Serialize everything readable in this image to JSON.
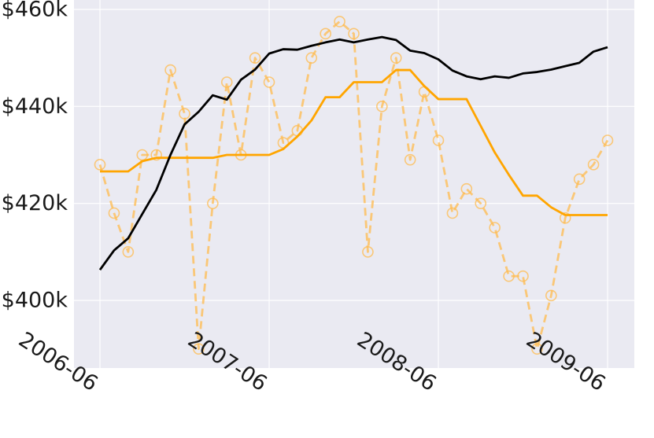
{
  "chart_data": {
    "type": "line",
    "title": "",
    "xlabel": "",
    "ylabel": "",
    "grid": true,
    "x": [
      "2006-06",
      "2006-07",
      "2006-08",
      "2006-09",
      "2006-10",
      "2006-11",
      "2006-12",
      "2007-01",
      "2007-02",
      "2007-03",
      "2007-04",
      "2007-05",
      "2007-06",
      "2007-07",
      "2007-08",
      "2007-09",
      "2007-10",
      "2007-11",
      "2007-12",
      "2008-01",
      "2008-02",
      "2008-03",
      "2008-04",
      "2008-05",
      "2008-06",
      "2008-07",
      "2008-08",
      "2008-09",
      "2008-10",
      "2008-11",
      "2008-12",
      "2009-01",
      "2009-02",
      "2009-03",
      "2009-04",
      "2009-05",
      "2009-06"
    ],
    "x_ticks": [
      "2006-06",
      "2007-06",
      "2008-06",
      "2009-06"
    ],
    "y_ticks": [
      400000,
      420000,
      440000,
      460000
    ],
    "y_tick_labels": [
      "$400k",
      "$420k",
      "$440k",
      "$460k"
    ],
    "ylim": [
      388000,
      460500
    ],
    "series": [
      {
        "color": "#ffbb4d",
        "style": "dashed-with-circle-markers",
        "values": [
          428000,
          418000,
          410000,
          430000,
          430000,
          447500,
          438500,
          390000,
          420000,
          445000,
          430000,
          450000,
          445000,
          432500,
          435000,
          450000,
          455000,
          457500,
          455000,
          410000,
          440000,
          450000,
          429000,
          443000,
          433000,
          418000,
          423000,
          420000,
          415000,
          405000,
          405000,
          390000,
          401000,
          417000,
          425000,
          428000,
          433000
        ]
      },
      {
        "color": "#ffa500",
        "style": "solid",
        "values": [
          426600,
          426600,
          426600,
          428700,
          429400,
          429400,
          429400,
          429400,
          429400,
          430000,
          430000,
          430000,
          430000,
          431200,
          433800,
          437100,
          441900,
          441900,
          445000,
          445000,
          445000,
          447500,
          447500,
          444200,
          441500,
          441500,
          441500,
          436000,
          430500,
          425900,
          421600,
          421600,
          419200,
          417600,
          417600,
          417600,
          417600
        ]
      },
      {
        "color": "#000000",
        "style": "solid",
        "values": [
          406300,
          410300,
          412800,
          417800,
          422800,
          430000,
          436300,
          438900,
          442300,
          441400,
          445500,
          447600,
          450900,
          451800,
          451700,
          452500,
          453200,
          453800,
          453200,
          453800,
          454300,
          453700,
          451500,
          451000,
          449700,
          447400,
          446200,
          445600,
          446200,
          445900,
          446800,
          447100,
          447600,
          448300,
          449000,
          451300,
          452200
        ]
      }
    ]
  }
}
